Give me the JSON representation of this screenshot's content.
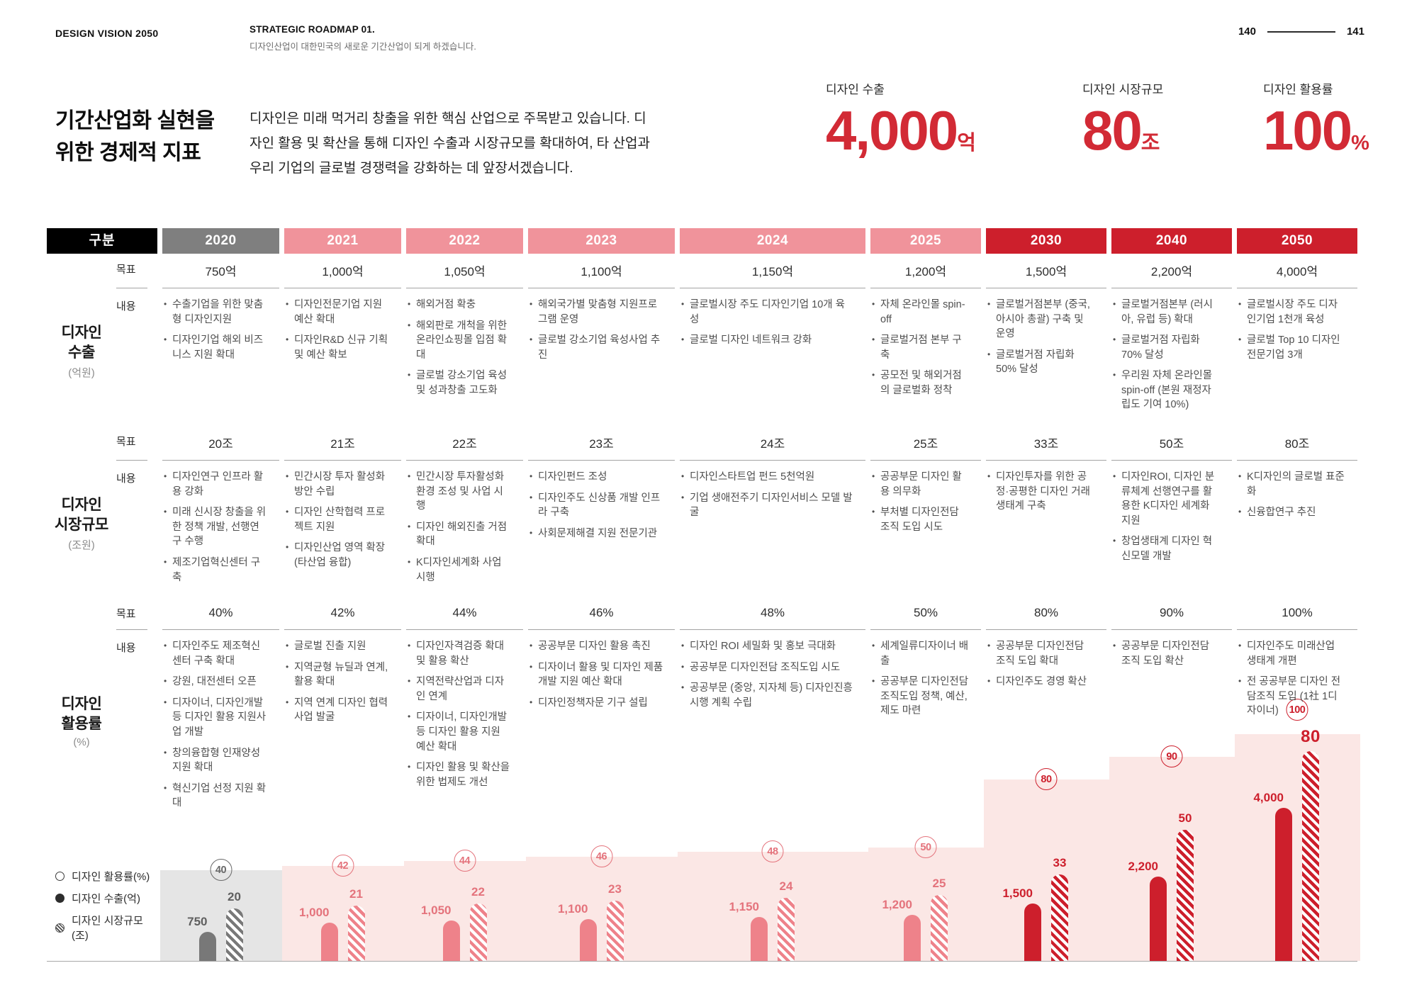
{
  "page": {
    "brand": "DESIGN VISION 2050",
    "roadmap_label": "STRATEGIC ROADMAP 01.",
    "roadmap_sub": "디자인산업이 대한민국의 새로운 기간산업이 되게 하겠습니다.",
    "page_left": "140",
    "page_right": "141",
    "title_line1": "기간산업화 실현을",
    "title_line2": "위한 경제적 지표",
    "intro": "디자인은 미래 먹거리 창출을 위한 핵심 산업으로 주목받고 있습니다. 디자인 활용 및 확산을 통해 디자인 수출과 시장규모를 확대하여, 타 산업과 우리 기업의 글로벌 경쟁력을 강화하는 데 앞장서겠습니다."
  },
  "kpis": [
    {
      "label": "디자인 수출",
      "value": "4,000",
      "unit": "억"
    },
    {
      "label": "디자인 시장규모",
      "value": "80",
      "unit": "조"
    },
    {
      "label": "디자인 활용률",
      "value": "100",
      "unit": "%"
    }
  ],
  "table": {
    "corner_label": "구분",
    "row_target_label": "목표",
    "row_content_label": "내용",
    "groups": [
      {
        "key": "export",
        "name_lines": [
          "디자인",
          "수출"
        ],
        "unit": "(억원)"
      },
      {
        "key": "market",
        "name_lines": [
          "디자인",
          "시장규모"
        ],
        "unit": "(조원)"
      },
      {
        "key": "util",
        "name_lines": [
          "디자인",
          "활용률"
        ],
        "unit": "(%)"
      }
    ]
  },
  "columns": [
    {
      "year": "2020",
      "tone": "gray",
      "export": {
        "target": "750억",
        "items": [
          "수출기업을 위한 맞춤형 디자인지원",
          "디자인기업 해외 비즈니스 지원 확대"
        ]
      },
      "market": {
        "target": "20조",
        "items": [
          "디자인연구 인프라 활용 강화",
          "미래 신시장 창출을 위한 정책 개발, 선행연구 수행",
          "제조기업혁신센터 구축"
        ]
      },
      "util": {
        "target": "40%",
        "items": [
          "디자인주도 제조혁신 센터 구축 확대",
          "강원, 대전센터 오픈",
          "디자이너, 디자인개발 등 디자인 활용 지원사업 개발",
          "창의융합형 인재양성 지원 확대",
          "혁신기업 선정 지원 확대"
        ]
      },
      "chart": {
        "util": 40,
        "export": 750,
        "market": 20,
        "export_label": "750",
        "market_label": "20"
      }
    },
    {
      "year": "2021",
      "tone": "pink",
      "export": {
        "target": "1,000억",
        "items": [
          "디자인전문기업 지원 예산 확대",
          "디자인R&D 신규 기획 및 예산 확보"
        ]
      },
      "market": {
        "target": "21조",
        "items": [
          "민간시장 투자 활성화 방안 수립",
          "디자인 산학협력 프로젝트 지원",
          "디자인산업 영역 확장 (타산업 융합)"
        ]
      },
      "util": {
        "target": "42%",
        "items": [
          "글로벌 진출 지원",
          "지역균형 뉴딜과 연계, 활용 확대",
          "지역 연계 디자인 협력사업 발굴"
        ]
      },
      "chart": {
        "util": 42,
        "export": 1000,
        "market": 21,
        "export_label": "1,000",
        "market_label": "21"
      }
    },
    {
      "year": "2022",
      "tone": "pink",
      "export": {
        "target": "1,050억",
        "items": [
          "해외거점 확충",
          "해외판로 개척을 위한 온라인쇼핑몰 입점 확대",
          "글로벌 강소기업 육성 및 성과창출 고도화"
        ]
      },
      "market": {
        "target": "22조",
        "items": [
          "민간시장 투자활성화 환경 조성 및 사업 시행",
          "디자인 해외진출 거점 확대",
          "K디자인세계화 사업 시행"
        ]
      },
      "util": {
        "target": "44%",
        "items": [
          "디자인자격검증 확대 및 활용 확산",
          "지역전략산업과 디자인 연계",
          "디자이너, 디자인개발 등 디자인 활용 지원 예산 확대",
          "디자인 활용 및 확산을 위한 법제도 개선"
        ]
      },
      "chart": {
        "util": 44,
        "export": 1050,
        "market": 22,
        "export_label": "1,050",
        "market_label": "22"
      }
    },
    {
      "year": "2023",
      "tone": "pink",
      "export": {
        "target": "1,100억",
        "items": [
          "해외국가별 맞춤형 지원프로그램 운영",
          "글로벌 강소기업 육성사업 추진"
        ]
      },
      "market": {
        "target": "23조",
        "items": [
          "디자인펀드 조성",
          "디자인주도 신상품 개발 인프라 구축",
          "사회문제해결 지원 전문기관"
        ]
      },
      "util": {
        "target": "46%",
        "items": [
          "공공부문 디자인 활용 촉진",
          "디자이너 활용 및 디자인 제품개발 지원 예산 확대",
          "디자인정책자문 기구 설립"
        ]
      },
      "chart": {
        "util": 46,
        "export": 1100,
        "market": 23,
        "export_label": "1,100",
        "market_label": "23"
      }
    },
    {
      "year": "2024",
      "tone": "pink",
      "export": {
        "target": "1,150억",
        "items": [
          "글로벌시장 주도 디자인기업 10개 육성",
          "글로벌 디자인 네트워크 강화"
        ]
      },
      "market": {
        "target": "24조",
        "items": [
          "디자인스타트업 펀드 5천억원",
          "기업 생애전주기 디자인서비스 모델 발굴"
        ]
      },
      "util": {
        "target": "48%",
        "items": [
          "디자인 ROI 세밀화 및 홍보 극대화",
          "공공부문 디자인전담 조직도입 시도",
          "공공부문 (중앙, 지자체 등) 디자인진흥시행 계획 수립"
        ]
      },
      "chart": {
        "util": 48,
        "export": 1150,
        "market": 24,
        "export_label": "1,150",
        "market_label": "24"
      }
    },
    {
      "year": "2025",
      "tone": "pink",
      "export": {
        "target": "1,200억",
        "items": [
          "자체 온라인몰 spin-off",
          "글로벌거점 본부 구축",
          "공모전 및 해외거점의 글로벌화 정착"
        ]
      },
      "market": {
        "target": "25조",
        "items": [
          "공공부문 디자인 활용 의무화",
          "부처별 디자인전담 조직 도입 시도"
        ]
      },
      "util": {
        "target": "50%",
        "items": [
          "세계일류디자이너 배출",
          "공공부문 디자인전담 조직도입 정책, 예산, 제도 마련"
        ]
      },
      "chart": {
        "util": 50,
        "export": 1200,
        "market": 25,
        "export_label": "1,200",
        "market_label": "25"
      }
    },
    {
      "year": "2030",
      "tone": "red",
      "export": {
        "target": "1,500억",
        "items": [
          "글로벌거점본부 (중국, 아시아 총괄) 구축 및 운영",
          "글로벌거점 자립화 50% 달성"
        ]
      },
      "market": {
        "target": "33조",
        "items": [
          "디자인투자를 위한 공정·공평한 디자인 거래 생태계 구축"
        ]
      },
      "util": {
        "target": "80%",
        "items": [
          "공공부문 디자인전담 조직 도입 확대",
          "디자인주도 경영 확산"
        ]
      },
      "chart": {
        "util": 80,
        "export": 1500,
        "market": 33,
        "export_label": "1,500",
        "market_label": "33"
      }
    },
    {
      "year": "2040",
      "tone": "red",
      "export": {
        "target": "2,200억",
        "items": [
          "글로벌거점본부 (러시아, 유럽 등) 확대",
          "글로벌거점 자립화 70% 달성",
          "우리원 자체 온라인몰 spin-off (본원 재정자립도 기여 10%)"
        ]
      },
      "market": {
        "target": "50조",
        "items": [
          "디자인ROI, 디자인 분류체계 선행연구를 활용한 K디자인 세계화 지원",
          "창업생태계 디자인 혁신모델 개발"
        ]
      },
      "util": {
        "target": "90%",
        "items": [
          "공공부문 디자인전담 조직 도입 확산"
        ]
      },
      "chart": {
        "util": 90,
        "export": 2200,
        "market": 50,
        "export_label": "2,200",
        "market_label": "50"
      }
    },
    {
      "year": "2050",
      "tone": "red",
      "export": {
        "target": "4,000억",
        "items": [
          "글로벌시장 주도 디자인기업 1천개 육성",
          "글로벌 Top 10 디자인전문기업 3개"
        ]
      },
      "market": {
        "target": "80조",
        "items": [
          "K디자인의 글로벌 표준화",
          "신융합연구 추진"
        ]
      },
      "util": {
        "target": "100%",
        "items": [
          "디자인주도 미래산업 생태계 개편",
          "전 공공부문 디자인 전담조직 도입 (1社 1디자이너)"
        ]
      },
      "chart": {
        "util": 100,
        "export": 4000,
        "market": 80,
        "export_label": "4,000",
        "market_label": "80"
      }
    }
  ],
  "legend": [
    {
      "icon": "open-circle",
      "label": "디자인 활용률(%)"
    },
    {
      "icon": "filled-circle",
      "label": "디자인 수출(억)"
    },
    {
      "icon": "hatched-circle",
      "label": "디자인 시장규모(조)"
    }
  ],
  "colors": {
    "accent_red": "#cd1f2c",
    "kpi_red": "#d22a35",
    "pink": "#f0939b",
    "pink_bar": "#ee828a",
    "pink_strong": "#e4737c",
    "pink_light": "#fbe7e5",
    "gray_header": "#7f7f7f",
    "gray_bar": "#787878",
    "gray_light": "#e5e5e5",
    "line_color": "#a3a3a3"
  },
  "chart_data": {
    "type": "bar",
    "categories": [
      "2020",
      "2021",
      "2022",
      "2023",
      "2024",
      "2025",
      "2030",
      "2040",
      "2050"
    ],
    "series": [
      {
        "name": "디자인 활용률(%)",
        "values": [
          40,
          42,
          44,
          46,
          48,
          50,
          80,
          90,
          100
        ]
      },
      {
        "name": "디자인 수출(억)",
        "values": [
          750,
          1000,
          1050,
          1100,
          1150,
          1200,
          1500,
          2200,
          4000
        ]
      },
      {
        "name": "디자인 시장규모(조)",
        "values": [
          20,
          21,
          22,
          23,
          24,
          25,
          33,
          50,
          80
        ]
      }
    ],
    "title": "기간산업화 실현을 위한 경제적 지표",
    "xlabel": "",
    "ylabel": "",
    "grid": false,
    "legend_position": "bottom-left"
  }
}
